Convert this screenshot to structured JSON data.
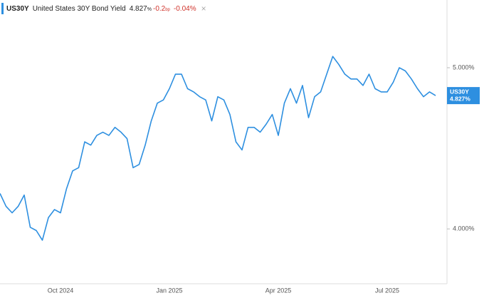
{
  "header": {
    "symbol": "US30Y",
    "name": "United States 30Y Bond Yield",
    "price": "4.827",
    "price_unit": "%",
    "change": "-0.2",
    "change_unit": "bp",
    "change_pct": "-0.04%"
  },
  "chart_data": {
    "type": "line",
    "categories": [
      null,
      null,
      null,
      null,
      null,
      null,
      null,
      null,
      null,
      null,
      "Oct 2024",
      null,
      null,
      null,
      null,
      null,
      null,
      null,
      null,
      null,
      null,
      null,
      null,
      null,
      null,
      null,
      null,
      null,
      "Jan 2025",
      null,
      null,
      null,
      null,
      null,
      null,
      null,
      null,
      null,
      null,
      null,
      null,
      null,
      null,
      null,
      null,
      null,
      "Apr 2025",
      null,
      null,
      null,
      null,
      null,
      null,
      null,
      null,
      null,
      null,
      null,
      null,
      null,
      null,
      null,
      null,
      null,
      "Jul 2025",
      null,
      null,
      null,
      null,
      null,
      null,
      null,
      null
    ],
    "series": [
      {
        "name": "US30Y",
        "color": "#2d8fe0",
        "values": [
          4.22,
          4.14,
          4.1,
          4.14,
          4.21,
          4.01,
          3.99,
          3.93,
          4.07,
          4.12,
          4.1,
          4.25,
          4.36,
          4.38,
          4.54,
          4.52,
          4.58,
          4.6,
          4.58,
          4.63,
          4.6,
          4.56,
          4.38,
          4.4,
          4.52,
          4.67,
          4.78,
          4.8,
          4.87,
          4.96,
          4.96,
          4.87,
          4.85,
          4.82,
          4.8,
          4.67,
          4.82,
          4.8,
          4.71,
          4.54,
          4.49,
          4.63,
          4.63,
          4.6,
          4.65,
          4.71,
          4.58,
          4.78,
          4.87,
          4.78,
          4.89,
          4.69,
          4.82,
          4.85,
          4.96,
          5.07,
          5.02,
          4.96,
          4.93,
          4.93,
          4.89,
          4.96,
          4.87,
          4.85,
          4.85,
          4.91,
          5.0,
          4.98,
          4.93,
          4.87,
          4.82,
          4.85,
          4.827
        ],
        "value_labels": [
          null,
          null,
          null,
          null,
          null,
          null,
          null,
          null,
          null,
          null,
          null,
          null,
          null,
          null,
          null,
          null,
          null,
          null,
          null,
          null,
          null,
          null,
          null,
          null,
          null,
          null,
          null,
          null,
          null,
          null,
          null,
          null,
          null,
          null,
          null,
          null,
          null,
          null,
          null,
          null,
          null,
          null,
          null,
          null,
          null,
          null,
          null,
          null,
          null,
          null,
          null,
          null,
          null,
          null,
          null,
          null,
          null,
          null,
          null,
          null,
          null,
          null,
          null,
          null,
          null,
          null,
          null,
          null,
          null,
          null,
          null,
          null,
          "4.827%"
        ]
      }
    ],
    "ylim": [
      3.66,
      5.42
    ],
    "yticks": [
      {
        "value": 4,
        "label": "4.000%"
      },
      {
        "value": 5,
        "label": "5.000%"
      }
    ]
  }
}
